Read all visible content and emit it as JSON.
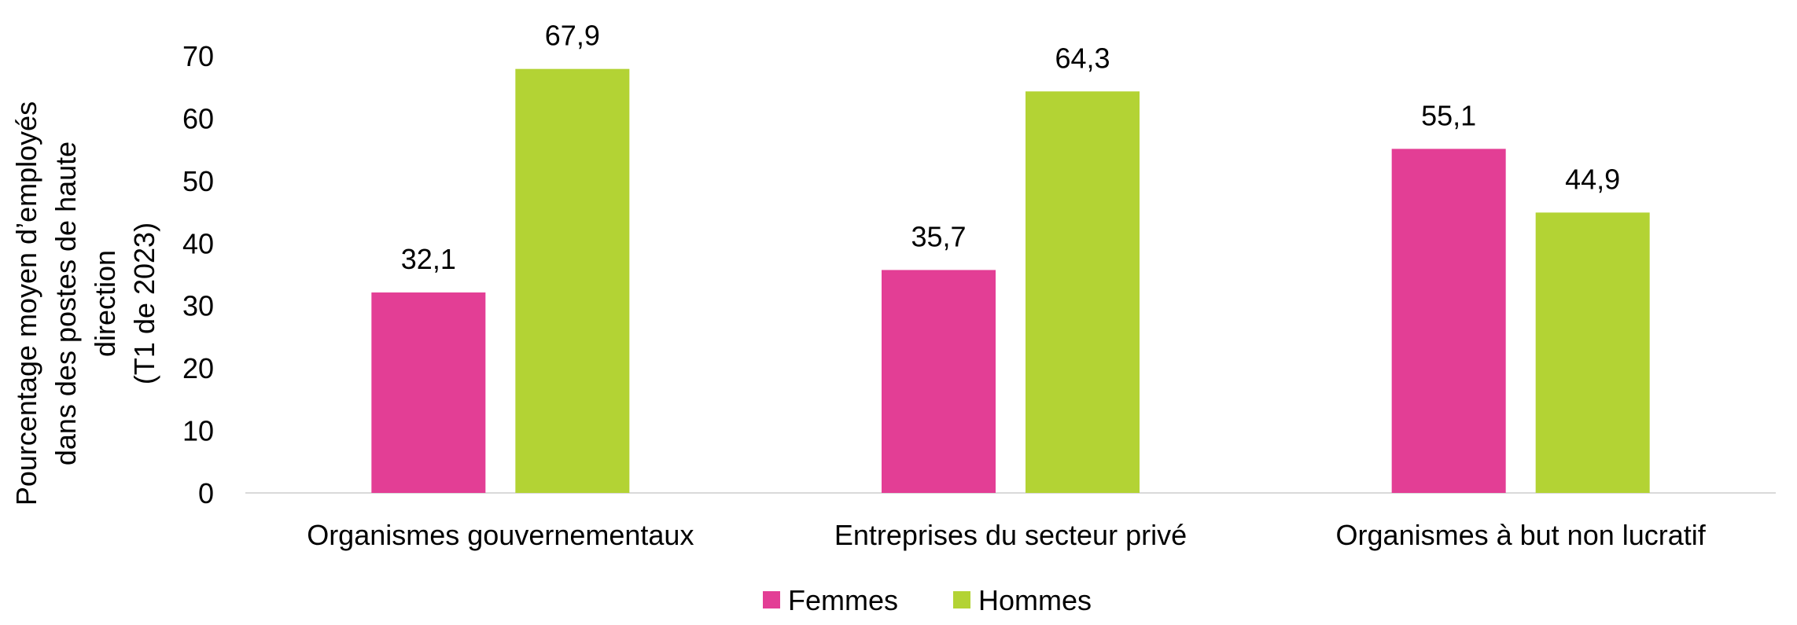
{
  "chart_data": {
    "type": "bar",
    "categories": [
      "Organismes gouvernementaux",
      "Entreprises du secteur privé",
      "Organismes à but non lucratif"
    ],
    "series": [
      {
        "name": "Femmes",
        "color": "#E33E95",
        "values": [
          32.1,
          35.7,
          55.1
        ],
        "labels": [
          "32,1",
          "35,7",
          "55,1"
        ]
      },
      {
        "name": "Hommes",
        "color": "#B3D334",
        "values": [
          67.9,
          64.3,
          44.9
        ],
        "labels": [
          "67,9",
          "64,3",
          "44,9"
        ]
      }
    ],
    "ylabel_lines": [
      "Pourcentage moyen d’employés",
      "dans des postes de haute",
      "direction",
      "(T1 de 2023)"
    ],
    "ylim": [
      0,
      70
    ],
    "yticks": [
      0,
      10,
      20,
      30,
      40,
      50,
      60,
      70
    ],
    "grid": false,
    "legend_position": "bottom"
  }
}
